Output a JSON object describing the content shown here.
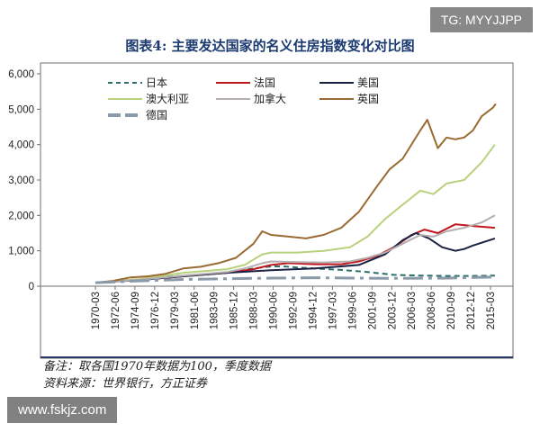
{
  "watermarks": {
    "top_right": "TG: MYYJJPP",
    "bottom_left": "www.fskjz.com"
  },
  "notes": {
    "line1": "备注：取各国1970年数据为100，季度数据",
    "line2": "资料来源：世界银行，方正证券"
  },
  "chart_data": {
    "type": "line",
    "title": "图表4:  主要发达国家的名义住房指数变化对比图",
    "xlabel": "",
    "ylabel": "",
    "ylim": [
      0,
      6000
    ],
    "yticks": [
      "0",
      "1,000",
      "2,000",
      "3,000",
      "4,000",
      "5,000",
      "6,000"
    ],
    "ytick_values": [
      0,
      1000,
      2000,
      3000,
      4000,
      5000,
      6000
    ],
    "xticks": [
      "1970-03",
      "1972-06",
      "1974-09",
      "1976-12",
      "1979-03",
      "1981-06",
      "1983-09",
      "1985-12",
      "1988-03",
      "1990-06",
      "1992-09",
      "1994-12",
      "1997-03",
      "1999-06",
      "2001-09",
      "2003-12",
      "2006-03",
      "2008-06",
      "2010-09",
      "2012-12",
      "2015-03"
    ],
    "xrange": [
      1970.0,
      2016.0
    ],
    "legend_position": "top-left",
    "grid": false,
    "series": [
      {
        "name": "日本",
        "color": "#2b6e6a",
        "dash": "6,4",
        "x": [
          1970.0,
          1975,
          1980,
          1985,
          1988,
          1990,
          1991.5,
          1993,
          1995,
          1998,
          2001,
          2004,
          2007,
          2010,
          2013,
          2015.5
        ],
        "y": [
          100,
          200,
          300,
          380,
          500,
          560,
          560,
          530,
          500,
          460,
          400,
          320,
          300,
          290,
          290,
          300
        ]
      },
      {
        "name": "法国",
        "color": "#c0171e",
        "dash": "",
        "x": [
          1970.0,
          1975,
          1980,
          1985,
          1988,
          1990,
          1992,
          1995,
          1998,
          2000,
          2002,
          2004,
          2006,
          2007.5,
          2009,
          2011,
          2013,
          2015.5
        ],
        "y": [
          100,
          180,
          280,
          380,
          480,
          600,
          650,
          620,
          620,
          700,
          850,
          1100,
          1450,
          1600,
          1500,
          1750,
          1700,
          1650
        ]
      },
      {
        "name": "美国",
        "color": "#1a2244",
        "dash": "",
        "x": [
          1970.0,
          1975,
          1980,
          1985,
          1990,
          1995,
          2000,
          2003,
          2005,
          2006.5,
          2008,
          2009.5,
          2011,
          2012,
          2013,
          2015.5
        ],
        "y": [
          100,
          170,
          280,
          380,
          450,
          500,
          600,
          900,
          1300,
          1500,
          1350,
          1100,
          1000,
          1050,
          1150,
          1350
        ]
      },
      {
        "name": "澳大利亚",
        "color": "#b8d17d",
        "dash": "",
        "x": [
          1970.0,
          1975,
          1980,
          1985,
          1987,
          1989,
          1990,
          1993,
          1996,
          1999,
          2001,
          2003,
          2005,
          2007,
          2008.5,
          2010,
          2012,
          2014,
          2015.5
        ],
        "y": [
          100,
          200,
          380,
          480,
          600,
          900,
          950,
          950,
          1000,
          1100,
          1400,
          1900,
          2300,
          2700,
          2600,
          2900,
          3000,
          3500,
          4000
        ]
      },
      {
        "name": "加拿大",
        "color": "#b5aeb0",
        "dash": "",
        "x": [
          1970.0,
          1975,
          1980,
          1985,
          1987,
          1989,
          1990,
          1993,
          1996,
          1999,
          2001,
          2003,
          2005,
          2007,
          2008.5,
          2010,
          2012,
          2014,
          2015.5
        ],
        "y": [
          100,
          180,
          300,
          400,
          500,
          650,
          700,
          680,
          670,
          700,
          800,
          950,
          1200,
          1450,
          1400,
          1550,
          1650,
          1800,
          2000
        ]
      },
      {
        "name": "英国",
        "color": "#9a6a33",
        "dash": "",
        "x": [
          1970.0,
          1972,
          1974,
          1976,
          1978,
          1980,
          1982,
          1984,
          1986,
          1988,
          1989,
          1990,
          1992,
          1994,
          1996,
          1998,
          2000,
          2002,
          2003.5,
          2005,
          2007,
          2007.8,
          2009,
          2010,
          2011,
          2012,
          2013,
          2014,
          2015.3,
          2015.6
        ],
        "y": [
          100,
          150,
          250,
          280,
          350,
          500,
          550,
          650,
          800,
          1200,
          1550,
          1450,
          1400,
          1350,
          1450,
          1650,
          2100,
          2800,
          3300,
          3600,
          4400,
          4700,
          3900,
          4200,
          4150,
          4200,
          4400,
          4800,
          5050,
          5150
        ]
      },
      {
        "name": "德国",
        "color": "#8a9aa8",
        "dash": "22,6,4,6",
        "x": [
          1970.0,
          1975,
          1980,
          1985,
          1990,
          1995,
          2000,
          2005,
          2010,
          2015.5
        ],
        "y": [
          100,
          150,
          190,
          210,
          230,
          240,
          230,
          220,
          230,
          260
        ]
      }
    ]
  }
}
